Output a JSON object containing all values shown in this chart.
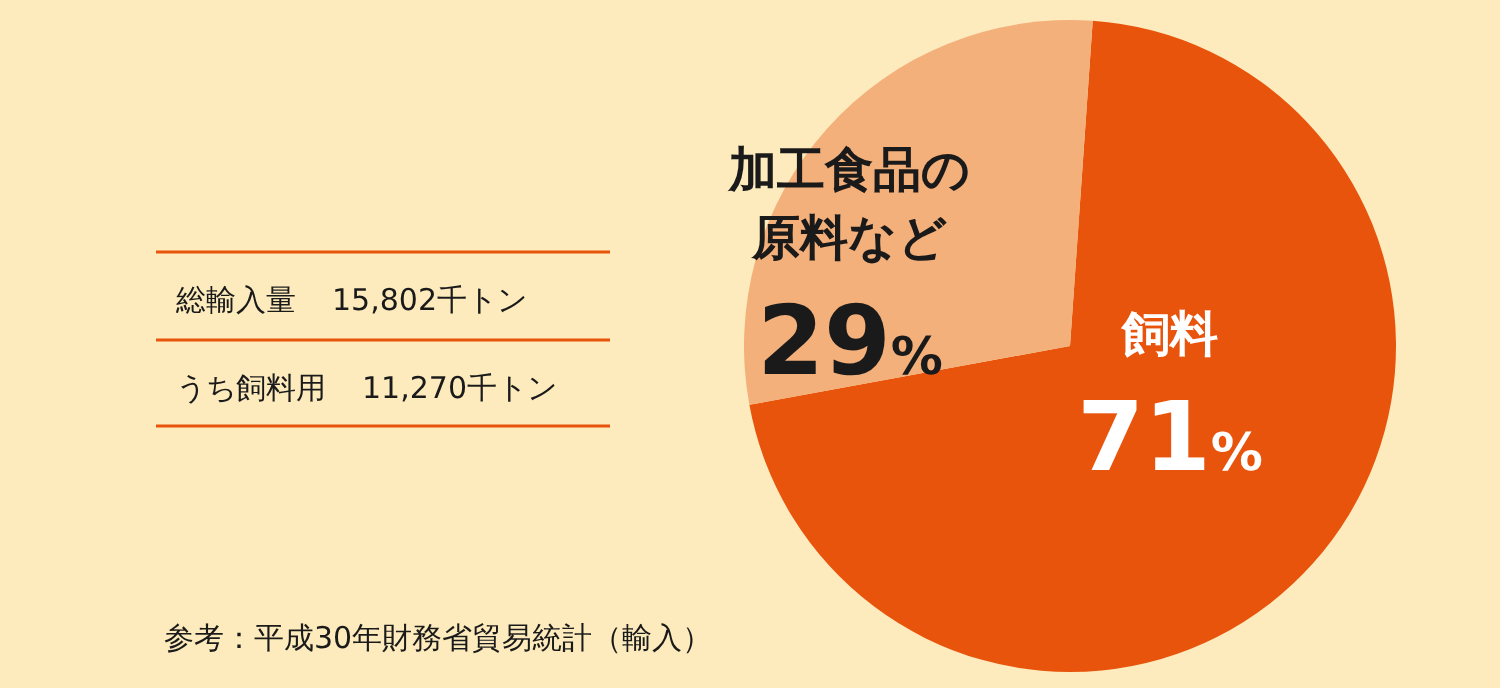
{
  "chart_data": {
    "type": "pie",
    "categories": [
      "飼料",
      "加工食品の原料など"
    ],
    "values": [
      71,
      29
    ],
    "value_labels": [
      "71%",
      "29%"
    ],
    "colors": [
      "#e9540d",
      "#f4b07b"
    ],
    "annotations": [
      "総輸入量　15,802千トン",
      "うち飼料用　11,270千トン",
      "参考：平成30年財務省貿易統計（輸入）"
    ]
  }
}
